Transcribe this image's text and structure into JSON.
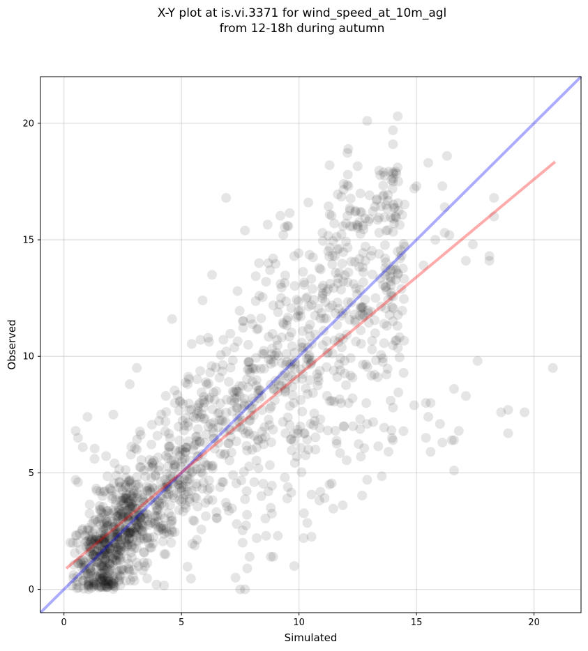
{
  "chart_data": {
    "type": "scatter",
    "title_lines": [
      "X-Y plot at is.vi.3371 for wind_speed_at_10m_agl",
      "from 12-18h during autumn"
    ],
    "xlabel": "Simulated",
    "ylabel": "Observed",
    "xlim": [
      -1,
      22
    ],
    "ylim": [
      -1,
      22
    ],
    "xticks": [
      0,
      5,
      10,
      15,
      20
    ],
    "yticks": [
      0,
      5,
      10,
      15,
      20
    ],
    "grid": true,
    "point_color": "#000000",
    "point_alpha": 0.1,
    "identity_line": {
      "color": "#0000ff",
      "alpha": 0.33,
      "from": [
        -1,
        -1
      ],
      "to": [
        22,
        22
      ]
    },
    "fit_line": {
      "color": "#ff0000",
      "alpha": 0.33,
      "from": [
        0.1,
        0.9
      ],
      "to": [
        20.9,
        18.35
      ]
    },
    "outliers": [
      [
        12.9,
        20.1
      ],
      [
        14.2,
        20.3
      ],
      [
        14.0,
        19.7
      ],
      [
        14.0,
        19.1
      ],
      [
        15.5,
        18.3
      ],
      [
        16.3,
        18.6
      ],
      [
        11.3,
        18.2
      ],
      [
        14.0,
        17.9
      ],
      [
        13.6,
        17.9
      ],
      [
        14.0,
        17.5
      ],
      [
        11.9,
        17.4
      ],
      [
        12.1,
        17.3
      ],
      [
        14.9,
        17.2
      ],
      [
        15.0,
        17.3
      ],
      [
        16.1,
        17.3
      ],
      [
        6.9,
        16.8
      ],
      [
        10.4,
        16.6
      ],
      [
        13.3,
        16.7
      ],
      [
        13.7,
        16.5
      ],
      [
        16.2,
        16.4
      ],
      [
        18.3,
        16.8
      ],
      [
        18.3,
        16.0
      ],
      [
        14.1,
        16.0
      ],
      [
        12.4,
        16.2
      ],
      [
        12.6,
        16.2
      ],
      [
        7.7,
        15.4
      ],
      [
        9.5,
        15.6
      ],
      [
        11.5,
        15.7
      ],
      [
        11.0,
        15.3
      ],
      [
        12.0,
        15.7
      ],
      [
        13.0,
        15.9
      ],
      [
        15.8,
        15.0
      ],
      [
        16.2,
        15.3
      ],
      [
        16.4,
        15.2
      ],
      [
        17.4,
        14.8
      ],
      [
        14.2,
        14.5
      ],
      [
        14.3,
        14.2
      ],
      [
        18.1,
        14.1
      ],
      [
        18.1,
        14.3
      ],
      [
        17.1,
        14.1
      ],
      [
        15.3,
        13.9
      ],
      [
        9.8,
        14.3
      ],
      [
        8.6,
        13.2
      ],
      [
        20.8,
        9.5
      ],
      [
        17.6,
        9.8
      ],
      [
        19.6,
        7.6
      ],
      [
        18.9,
        7.7
      ],
      [
        18.6,
        7.6
      ],
      [
        18.9,
        6.7
      ],
      [
        16.6,
        8.6
      ],
      [
        17.1,
        8.3
      ],
      [
        16.0,
        7.1
      ],
      [
        16.8,
        6.8
      ],
      [
        16.5,
        6.4
      ],
      [
        16.6,
        6.4
      ],
      [
        16.1,
        6.3
      ],
      [
        16.6,
        5.1
      ],
      [
        15.4,
        6.5
      ],
      [
        15.6,
        5.9
      ],
      [
        15.6,
        8.0
      ],
      [
        15.5,
        7.4
      ],
      [
        15.4,
        8.0
      ],
      [
        14.9,
        7.9
      ],
      [
        14.0,
        6.4
      ],
      [
        12.9,
        4.7
      ],
      [
        11.3,
        4.5
      ],
      [
        10.2,
        2.2
      ],
      [
        9.8,
        1.0
      ],
      [
        9.5,
        3.9
      ],
      [
        9.4,
        4.8
      ],
      [
        8.2,
        2.2
      ],
      [
        7.9,
        1.4
      ],
      [
        7.5,
        0.0
      ],
      [
        7.7,
        0.0
      ],
      [
        7.3,
        0.5
      ],
      [
        7.6,
        2.0
      ],
      [
        6.3,
        13.5
      ],
      [
        5.9,
        12.4
      ],
      [
        4.6,
        11.6
      ],
      [
        8.3,
        14.0
      ],
      [
        8.7,
        14.0
      ],
      [
        13.9,
        8.1
      ],
      [
        14.0,
        7.8
      ],
      [
        12.3,
        7.0
      ],
      [
        12.9,
        7.1
      ],
      [
        11.9,
        7.0
      ],
      [
        10.5,
        7.1
      ],
      [
        10.7,
        6.0
      ],
      [
        10.4,
        6.0
      ],
      [
        9.9,
        5.7
      ],
      [
        9.8,
        6.7
      ],
      [
        8.7,
        4.2
      ],
      [
        8.4,
        4.0
      ],
      [
        8.8,
        3.5
      ],
      [
        8.6,
        2.3
      ],
      [
        9.1,
        2.3
      ],
      [
        7.8,
        0.9
      ],
      [
        8.8,
        1.4
      ],
      [
        8.9,
        1.4
      ],
      [
        0.5,
        6.8
      ],
      [
        0.6,
        6.5
      ],
      [
        1.0,
        7.4
      ],
      [
        2.1,
        7.5
      ],
      [
        2.8,
        8.8
      ],
      [
        3.1,
        9.5
      ],
      [
        1.3,
        5.6
      ],
      [
        0.8,
        6.1
      ],
      [
        0.5,
        4.7
      ],
      [
        0.6,
        4.6
      ]
    ]
  }
}
